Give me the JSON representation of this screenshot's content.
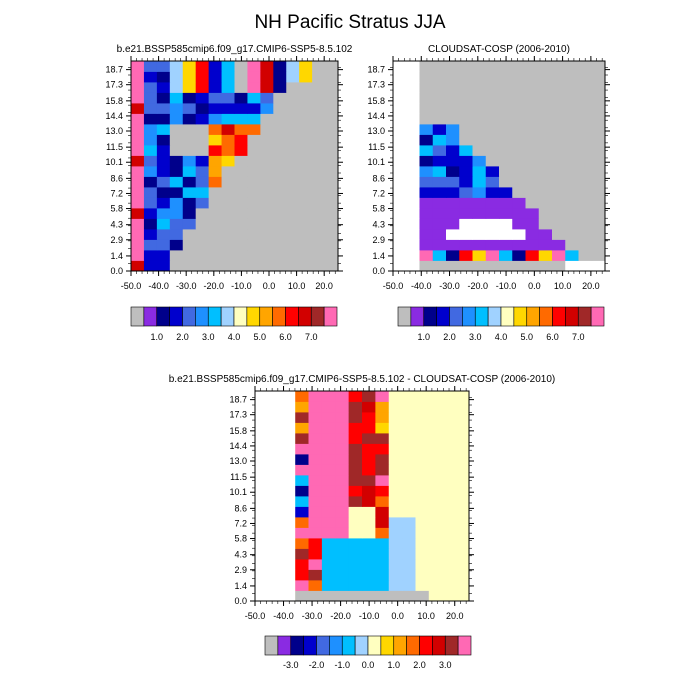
{
  "title": "NH Pacific Stratus JJA",
  "chart_data": [
    {
      "type": "heatmap",
      "title": "b.e21.BSSP585cmip6.f09_g17.CMIP6-SSP5-8.5.102",
      "x_ticks": [
        "-50.0",
        "-40.0",
        "-30.0",
        "-20.0",
        "-10.0",
        "0.0",
        "10.0",
        "20.0"
      ],
      "y_ticks": [
        "0.0",
        "1.4",
        "2.9",
        "4.3",
        "5.8",
        "7.2",
        "8.6",
        "10.1",
        "11.5",
        "13.0",
        "14.4",
        "15.8",
        "17.3",
        "18.7"
      ],
      "xlim": [
        -50,
        25
      ],
      "ylim": [
        0,
        19.5
      ],
      "colorbar_labels": [
        "1.0",
        "2.0",
        "3.0",
        "4.0",
        "5.0",
        "6.0",
        "7.0"
      ],
      "colorbar_colors": [
        "#bebebe",
        "#8a2be2",
        "#00008b",
        "#0000cd",
        "#4169e1",
        "#1e90ff",
        "#00bfff",
        "#a0d2ff",
        "#ffffc0",
        "#ffd700",
        "#ffa500",
        "#ff6a00",
        "#ff0000",
        "#d20000",
        "#a02828",
        "#ff69b4"
      ]
    },
    {
      "type": "heatmap",
      "title": "CLOUDSAT-COSP (2006-2010)",
      "x_ticks": [
        "-50.0",
        "-40.0",
        "-30.0",
        "-20.0",
        "-10.0",
        "0.0",
        "10.0",
        "20.0"
      ],
      "y_ticks": [
        "0.0",
        "1.4",
        "2.9",
        "4.3",
        "5.8",
        "7.2",
        "8.6",
        "10.1",
        "11.5",
        "13.0",
        "14.4",
        "15.8",
        "17.3",
        "18.7"
      ],
      "xlim": [
        -50,
        25
      ],
      "ylim": [
        0,
        19.5
      ],
      "colorbar_labels": [
        "1.0",
        "2.0",
        "3.0",
        "4.0",
        "5.0",
        "6.0",
        "7.0"
      ],
      "colorbar_colors": [
        "#bebebe",
        "#8a2be2",
        "#00008b",
        "#0000cd",
        "#4169e1",
        "#1e90ff",
        "#00bfff",
        "#a0d2ff",
        "#ffffc0",
        "#ffd700",
        "#ffa500",
        "#ff6a00",
        "#ff0000",
        "#d20000",
        "#a02828",
        "#ff69b4"
      ]
    },
    {
      "type": "heatmap",
      "title": "b.e21.BSSP585cmip6.f09_g17.CMIP6-SSP5-8.5.102 - CLOUDSAT-COSP (2006-2010)",
      "x_ticks": [
        "-50.0",
        "-40.0",
        "-30.0",
        "-20.0",
        "-10.0",
        "0.0",
        "10.0",
        "20.0"
      ],
      "y_ticks": [
        "0.0",
        "1.4",
        "2.9",
        "4.3",
        "5.8",
        "7.2",
        "8.6",
        "10.1",
        "11.5",
        "13.0",
        "14.4",
        "15.8",
        "17.3",
        "18.7"
      ],
      "xlim": [
        -50,
        25
      ],
      "ylim": [
        0,
        19.5
      ],
      "colorbar_labels": [
        "-3.0",
        "-2.0",
        "-1.0",
        "0.0",
        "1.0",
        "2.0",
        "3.0"
      ],
      "colorbar_colors": [
        "#bebebe",
        "#8a2be2",
        "#00008b",
        "#0000cd",
        "#4169e1",
        "#1e90ff",
        "#00bfff",
        "#a0d2ff",
        "#ffffc0",
        "#ffd700",
        "#ffa500",
        "#ff6a00",
        "#ff0000",
        "#d20000",
        "#a02828",
        "#ff69b4"
      ]
    }
  ]
}
